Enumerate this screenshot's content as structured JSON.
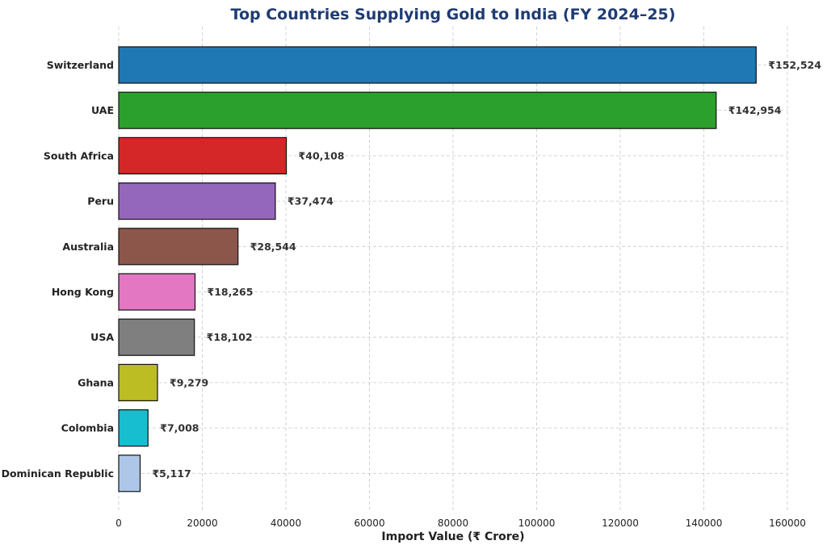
{
  "chart_data": {
    "type": "bar",
    "orientation": "horizontal",
    "title": "Top Countries Supplying Gold to India (FY 2024–25)",
    "xlabel": "Import Value (₹ Crore)",
    "ylabel": "",
    "xlim": [
      0,
      160000
    ],
    "x_ticks": [
      0,
      20000,
      40000,
      60000,
      80000,
      100000,
      120000,
      140000,
      160000
    ],
    "x_tick_labels": [
      "0",
      "20000",
      "40000",
      "60000",
      "80000",
      "100000",
      "120000",
      "140000",
      "160000"
    ],
    "grid": true,
    "categories": [
      "Switzerland",
      "UAE",
      "South Africa",
      "Peru",
      "Australia",
      "Hong Kong",
      "USA",
      "Ghana",
      "Colombia",
      "Dominican Republic"
    ],
    "values": [
      152524,
      142954,
      40108,
      37474,
      28544,
      18265,
      18102,
      9279,
      7008,
      5117
    ],
    "value_labels": [
      "₹152,524",
      "₹142,954",
      "₹40,108",
      "₹37,474",
      "₹28,544",
      "₹18,265",
      "₹18,102",
      "₹9,279",
      "₹7,008",
      "₹5,117"
    ],
    "colors": [
      "#1f77b4",
      "#2ca02c",
      "#d62728",
      "#9467bd",
      "#8c564b",
      "#e377c2",
      "#7f7f7f",
      "#bcbd22",
      "#17becf",
      "#aec7e8"
    ]
  }
}
